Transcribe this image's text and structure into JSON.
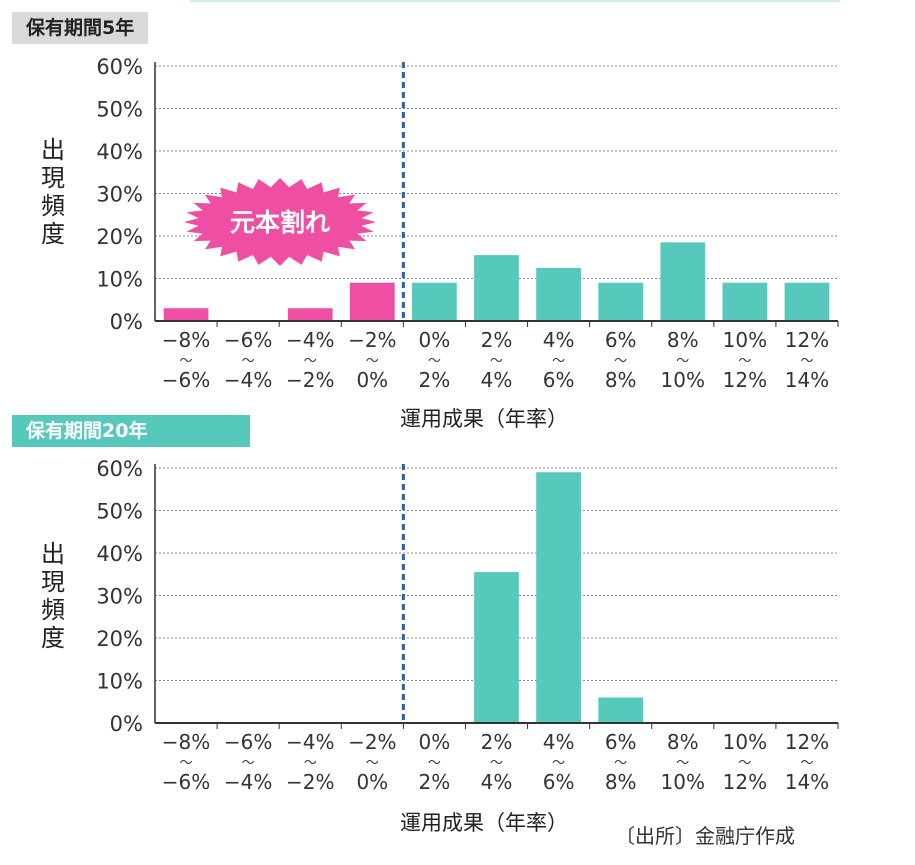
{
  "colors": {
    "loss_bar": "#ef4fa3",
    "gain_bar": "#56c8bc",
    "divider_line": "#2f5fa8",
    "grid": "#888888",
    "badge": "#ef4fa3"
  },
  "charts": {
    "top": {
      "panel_label": "保有期間5年",
      "ylabel": "出現頻度",
      "xlabel": "運用成果（年率）",
      "badge": "元本割れ"
    },
    "bottom": {
      "panel_label": "保有期間20年",
      "ylabel": "出現頻度",
      "xlabel": "運用成果（年率）"
    }
  },
  "source": "〔出所〕金融庁作成",
  "chart_data": [
    {
      "type": "bar",
      "title": "保有期間5年",
      "ylabel": "出現頻度",
      "xlabel": "運用成果（年率）",
      "ylim": [
        0,
        60
      ],
      "yticks": [
        "0%",
        "10%",
        "20%",
        "30%",
        "40%",
        "50%",
        "60%"
      ],
      "categories": [
        [
          "−8%",
          "〜",
          "−6%"
        ],
        [
          "−6%",
          "〜",
          "−4%"
        ],
        [
          "−4%",
          "〜",
          "−2%"
        ],
        [
          "−2%",
          "〜",
          "0%"
        ],
        [
          "0%",
          "〜",
          "2%"
        ],
        [
          "2%",
          "〜",
          "4%"
        ],
        [
          "4%",
          "〜",
          "6%"
        ],
        [
          "6%",
          "〜",
          "8%"
        ],
        [
          "8%",
          "〜",
          "10%"
        ],
        [
          "10%",
          "〜",
          "12%"
        ],
        [
          "12%",
          "〜",
          "14%"
        ]
      ],
      "values": [
        3,
        0,
        3,
        9,
        9,
        15.5,
        12.5,
        9,
        18.5,
        9,
        9
      ],
      "loss_count": 4,
      "grid": true
    },
    {
      "type": "bar",
      "title": "保有期間20年",
      "ylabel": "出現頻度",
      "xlabel": "運用成果（年率）",
      "ylim": [
        0,
        60
      ],
      "yticks": [
        "0%",
        "10%",
        "20%",
        "30%",
        "40%",
        "50%",
        "60%"
      ],
      "categories": [
        [
          "−8%",
          "〜",
          "−6%"
        ],
        [
          "−6%",
          "〜",
          "−4%"
        ],
        [
          "−4%",
          "〜",
          "−2%"
        ],
        [
          "−2%",
          "〜",
          "0%"
        ],
        [
          "0%",
          "〜",
          "2%"
        ],
        [
          "2%",
          "〜",
          "4%"
        ],
        [
          "4%",
          "〜",
          "6%"
        ],
        [
          "6%",
          "〜",
          "8%"
        ],
        [
          "8%",
          "〜",
          "10%"
        ],
        [
          "10%",
          "〜",
          "12%"
        ],
        [
          "12%",
          "〜",
          "14%"
        ]
      ],
      "values": [
        0,
        0,
        0,
        0,
        0,
        35.5,
        59,
        6,
        0,
        0,
        0
      ],
      "loss_count": 4,
      "grid": true
    }
  ]
}
